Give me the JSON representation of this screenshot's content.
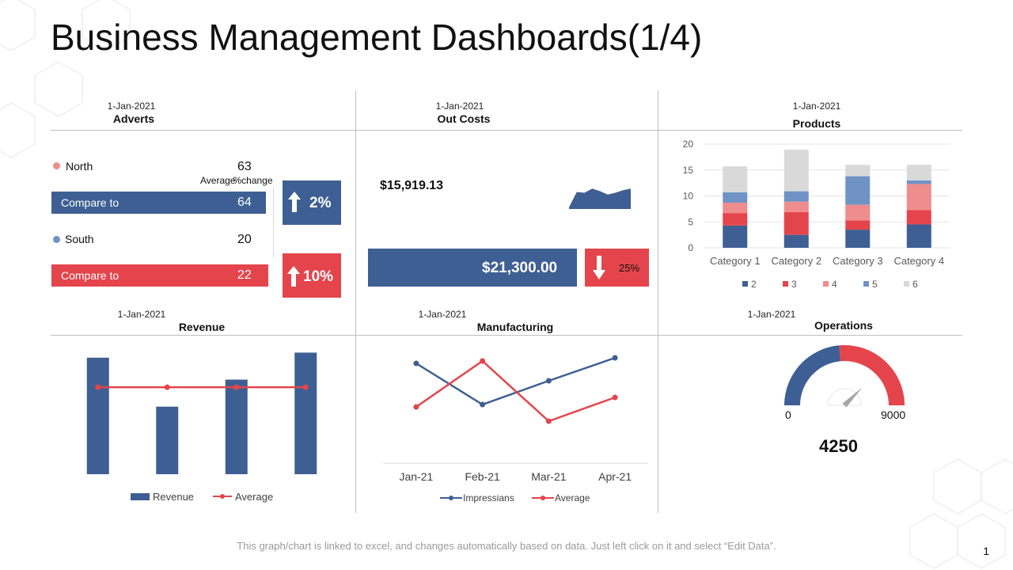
{
  "header": {
    "title": "Business Management Dashboards(1/4)"
  },
  "colors": {
    "blue": "#3e5f93",
    "red": "#e4454c",
    "pink": "#ef8c8c",
    "lightblue": "#7093c6",
    "gray": "#d9d9d9"
  },
  "adverts": {
    "date": "1-Jan-2021",
    "title": "Adverts",
    "north_label": "North",
    "north_value": "63",
    "average_label": "Average",
    "change_label": "%change",
    "compare1_label": "Compare to",
    "compare1_value": "64",
    "change1": "2%",
    "south_label": "South",
    "south_value": "20",
    "compare2_label": "Compare to",
    "compare2_value": "22",
    "change2": "10%"
  },
  "outcosts": {
    "date": "1-Jan-2021",
    "title": "Out Costs",
    "amount1": "$15,919.13",
    "amount2": "$21,300.00",
    "change": "25%"
  },
  "products_panel": {
    "date": "1-Jan-2021",
    "title": "Products"
  },
  "revenue_panel": {
    "date": "1-Jan-2021",
    "title": "Revenue"
  },
  "manufacturing_panel": {
    "date": "1-Jan-2021",
    "title": "Manufacturing"
  },
  "operations": {
    "date": "1-Jan-2021",
    "title": "Operations",
    "min_label": "0",
    "max_label": "9000",
    "value_label": "4250"
  },
  "chart_data": [
    {
      "id": "products",
      "type": "bar",
      "stacked": true,
      "categories": [
        "Category 1",
        "Category 2",
        "Category 3",
        "Category 4"
      ],
      "series": [
        {
          "name": "2",
          "values": [
            4.3,
            2.5,
            3.5,
            4.5
          ],
          "color": "#3e5f93"
        },
        {
          "name": "3",
          "values": [
            2.4,
            4.4,
            1.8,
            2.8
          ],
          "color": "#e4454c"
        },
        {
          "name": "4",
          "values": [
            2.0,
            2.0,
            3.0,
            5.0
          ],
          "color": "#ef8c8c"
        },
        {
          "name": "5",
          "values": [
            2.0,
            2.0,
            5.5,
            0.7
          ],
          "color": "#7093c6"
        },
        {
          "name": "6",
          "values": [
            5.0,
            8.0,
            2.2,
            3.0
          ],
          "color": "#d9d9d9"
        }
      ],
      "ylim": [
        0,
        20
      ],
      "yticks": [
        "0",
        "5",
        "10",
        "15",
        "20"
      ],
      "grid": true,
      "legend": "bottom"
    },
    {
      "id": "revenue",
      "type": "bar",
      "categories": [
        "",
        "",
        "",
        ""
      ],
      "series": [
        {
          "name": "Revenue",
          "type": "bar",
          "values": [
            138,
            80,
            112,
            144
          ],
          "color": "#3e5f93"
        },
        {
          "name": "Average",
          "type": "line",
          "values": [
            103,
            103,
            103,
            103
          ],
          "color": "#e4454c"
        }
      ],
      "ylim": [
        0,
        150
      ],
      "grid": false,
      "legend": "bottom"
    },
    {
      "id": "manufacturing",
      "type": "line",
      "categories": [
        "Jan-21",
        "Feb-21",
        "Mar-21",
        "Apr-21"
      ],
      "series": [
        {
          "name": "Impressians",
          "values": [
            126,
            74,
            104,
            133
          ],
          "color": "#3e5f93"
        },
        {
          "name": "Average",
          "values": [
            71,
            129,
            53,
            83
          ],
          "color": "#e4454c"
        }
      ],
      "ylim": [
        0,
        140
      ],
      "grid": false,
      "legend": "bottom"
    },
    {
      "id": "outcosts-sparkline",
      "type": "area",
      "values": [
        10,
        100,
        95,
        120,
        105,
        85,
        95,
        110,
        120
      ],
      "color": "#3e5f93"
    },
    {
      "id": "operations-gauge",
      "type": "gauge",
      "min": 0,
      "max": 9000,
      "value": 4250,
      "colors": [
        "#3e5f93",
        "#e4454c"
      ]
    }
  ],
  "footer": {
    "note": "This graph/chart is linked to excel, and changes automatically based on data. Just left click on it and select “Edit Data”.",
    "page": "1"
  }
}
